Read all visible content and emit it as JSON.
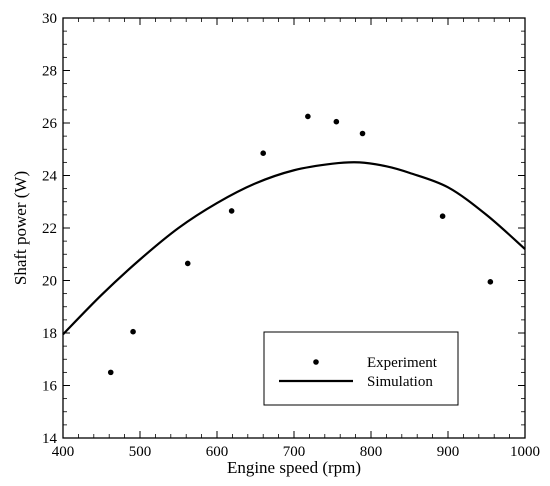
{
  "chart_data": {
    "type": "line",
    "xlabel": "Engine speed (rpm)",
    "ylabel": "Shaft power (W)",
    "xlim": [
      400,
      1000
    ],
    "ylim": [
      14,
      30
    ],
    "xticks": [
      400,
      500,
      600,
      700,
      800,
      900,
      1000
    ],
    "yticks": [
      14,
      16,
      18,
      20,
      22,
      24,
      26,
      28,
      30
    ],
    "grid": false,
    "legend_position": "bottom-right",
    "series": [
      {
        "name": "Experiment",
        "style": "markers",
        "color": "#000000",
        "x": [
          462,
          491,
          562,
          619,
          660,
          718,
          755,
          789,
          893,
          955
        ],
        "y": [
          16.5,
          18.05,
          20.65,
          22.65,
          24.85,
          26.25,
          26.05,
          25.6,
          22.45,
          19.95
        ]
      },
      {
        "name": "Simulation",
        "style": "line",
        "color": "#000000",
        "x": [
          400,
          450,
          500,
          550,
          600,
          650,
          700,
          750,
          785,
          820,
          850,
          900,
          950,
          1000
        ],
        "y": [
          17.95,
          19.45,
          20.8,
          22.0,
          22.95,
          23.7,
          24.2,
          24.45,
          24.5,
          24.35,
          24.1,
          23.55,
          22.5,
          21.2
        ]
      }
    ]
  }
}
